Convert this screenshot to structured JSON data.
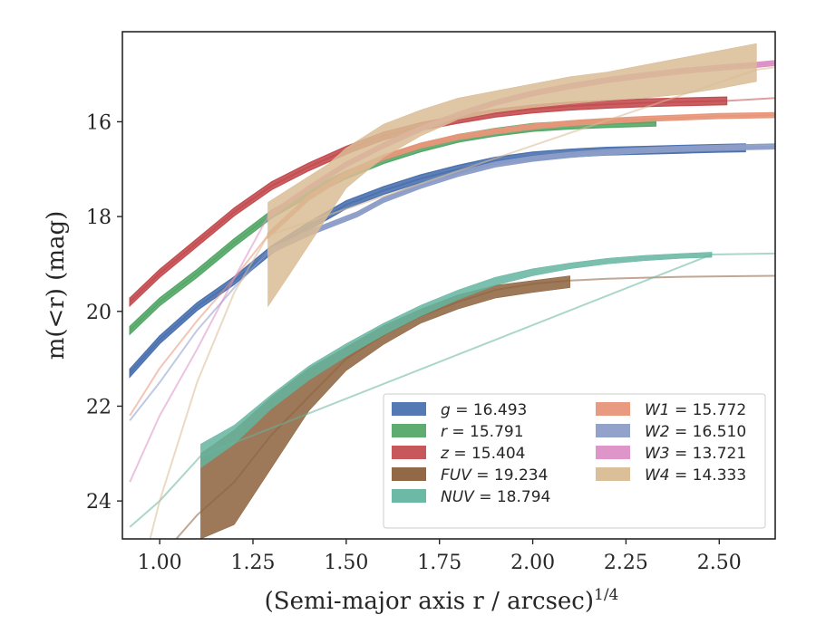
{
  "chart_data": {
    "type": "line",
    "xlabel": "(Semi-major axis r / arcsec)",
    "xlabel_superscript": "1/4",
    "ylabel": "m(<r) (mag)",
    "xlim": [
      0.9,
      2.65
    ],
    "ylim": [
      24.8,
      14.1
    ],
    "y_inverted": true,
    "grid": false,
    "legend_placement": "lower-right",
    "x_ticks": [
      "1.00",
      "1.25",
      "1.50",
      "1.75",
      "2.00",
      "2.25",
      "2.50"
    ],
    "x_tick_values": [
      1.0,
      1.25,
      1.5,
      1.75,
      2.0,
      2.25,
      2.5
    ],
    "y_ticks": [
      "16",
      "18",
      "20",
      "22",
      "24"
    ],
    "y_tick_values": [
      16,
      18,
      20,
      22,
      24
    ],
    "series": [
      {
        "band": "g",
        "value": "16.493",
        "color": "#4c72b0",
        "data_x": [
          0.92,
          1.0,
          1.1,
          1.2,
          1.3,
          1.4,
          1.5,
          1.6,
          1.7,
          1.8,
          1.9,
          2.0,
          2.1,
          2.2,
          2.3,
          2.4,
          2.5,
          2.57
        ],
        "data_y": [
          21.3,
          20.6,
          19.9,
          19.35,
          18.7,
          18.2,
          17.75,
          17.45,
          17.2,
          17.0,
          16.83,
          16.72,
          16.66,
          16.62,
          16.6,
          16.58,
          16.56,
          16.55
        ],
        "data_halfwidth": 0.08,
        "model_x": [
          2.57,
          2.65
        ],
        "model_y": [
          16.55,
          16.52
        ]
      },
      {
        "band": "r",
        "value": "15.791",
        "color": "#55a868",
        "data_x": [
          0.92,
          1.0,
          1.1,
          1.2,
          1.3,
          1.4,
          1.5,
          1.6,
          1.7,
          1.8,
          1.9,
          2.0,
          2.1,
          2.2,
          2.33
        ],
        "data_y": [
          20.4,
          19.8,
          19.2,
          18.55,
          17.95,
          17.5,
          17.12,
          16.8,
          16.55,
          16.35,
          16.22,
          16.12,
          16.07,
          16.04,
          16.01
        ],
        "data_halfwidth": 0.08,
        "model_x": [],
        "model_y": []
      },
      {
        "band": "z",
        "value": "15.404",
        "color": "#c44e52",
        "data_x": [
          0.92,
          1.0,
          1.1,
          1.2,
          1.3,
          1.4,
          1.5,
          1.6,
          1.7,
          1.8,
          1.9,
          2.0,
          2.1,
          2.2,
          2.3,
          2.4,
          2.52
        ],
        "data_y": [
          19.8,
          19.2,
          18.55,
          17.9,
          17.35,
          16.95,
          16.6,
          16.3,
          16.1,
          15.95,
          15.82,
          15.73,
          15.67,
          15.63,
          15.6,
          15.58,
          15.56
        ],
        "data_halfwidth": 0.08,
        "model_x": [
          2.52,
          2.65
        ],
        "model_y": [
          15.56,
          15.5
        ]
      },
      {
        "band": "FUV",
        "value": "19.234",
        "color": "#8c613c",
        "data_x": [
          1.11,
          1.2,
          1.3,
          1.4,
          1.5,
          1.6,
          1.7,
          1.8,
          1.9,
          2.0,
          2.1
        ],
        "data_lo": [
          24.8,
          24.5,
          23.3,
          22.1,
          21.25,
          20.7,
          20.25,
          19.95,
          19.72,
          19.6,
          19.5
        ],
        "data_hi": [
          23.0,
          22.5,
          21.8,
          21.2,
          20.75,
          20.3,
          19.95,
          19.65,
          19.45,
          19.35,
          19.25
        ],
        "model_x": [
          0.92,
          1.0,
          1.1,
          1.2,
          1.3,
          1.4,
          1.5,
          1.6,
          1.7,
          1.8,
          1.9,
          2.0,
          2.1,
          2.2,
          2.3,
          2.4,
          2.5,
          2.65
        ],
        "model_y": [
          25.8,
          25.2,
          24.3,
          23.6,
          22.6,
          21.8,
          21.0,
          20.5,
          20.1,
          19.8,
          19.55,
          19.42,
          19.35,
          19.31,
          19.29,
          19.27,
          19.26,
          19.25
        ]
      },
      {
        "band": "NUV",
        "value": "18.794",
        "color": "#64b5a0",
        "data_x": [
          1.11,
          1.2,
          1.3,
          1.4,
          1.5,
          1.6,
          1.7,
          1.8,
          1.9,
          2.0,
          2.1,
          2.2,
          2.3,
          2.4,
          2.48
        ],
        "data_lo": [
          23.3,
          22.8,
          22.05,
          21.45,
          20.95,
          20.5,
          20.1,
          19.75,
          19.45,
          19.25,
          19.1,
          19.0,
          18.93,
          18.88,
          18.86
        ],
        "data_hi": [
          22.8,
          22.4,
          21.75,
          21.15,
          20.68,
          20.25,
          19.87,
          19.55,
          19.28,
          19.1,
          18.98,
          18.88,
          18.82,
          18.78,
          18.75
        ],
        "model_x": [
          0.92,
          1.0,
          1.11,
          2.48,
          2.65
        ],
        "model_y": [
          24.55,
          24.0,
          23.05,
          18.8,
          18.78
        ]
      },
      {
        "band": "W1",
        "value": "15.772",
        "color": "#e8967a",
        "data_x": [
          1.29,
          1.4,
          1.5,
          1.6,
          1.7,
          1.8,
          1.9,
          2.0,
          2.1,
          2.2,
          2.3,
          2.4,
          2.5,
          2.65
        ],
        "data_y": [
          18.4,
          17.6,
          17.1,
          16.75,
          16.5,
          16.32,
          16.2,
          16.1,
          16.03,
          15.98,
          15.94,
          15.91,
          15.88,
          15.86
        ],
        "data_halfwidth": 0.05,
        "model_x": [
          0.92,
          1.0,
          1.1,
          1.2,
          1.29
        ],
        "model_y": [
          22.2,
          21.2,
          20.2,
          19.3,
          18.4
        ]
      },
      {
        "band": "W2",
        "value": "16.510",
        "color": "#8c9dc8",
        "data_x": [
          1.29,
          1.4,
          1.53,
          1.6,
          1.7,
          1.8,
          1.9,
          2.0,
          2.1,
          2.2,
          2.3,
          2.4,
          2.5,
          2.65
        ],
        "data_y": [
          18.75,
          18.35,
          17.95,
          17.65,
          17.35,
          17.1,
          16.9,
          16.78,
          16.7,
          16.64,
          16.6,
          16.57,
          16.55,
          16.52
        ],
        "data_halfwidth": 0.05,
        "model_x": [
          0.92,
          1.0,
          1.1,
          1.2,
          1.29
        ],
        "model_y": [
          22.3,
          21.5,
          20.4,
          19.5,
          18.75
        ]
      },
      {
        "band": "W3",
        "value": "13.721",
        "color": "#dc8fc4",
        "data_x": [
          1.29,
          1.4,
          1.5,
          1.6,
          1.7,
          1.8,
          1.9,
          2.0,
          2.1,
          2.2,
          2.3,
          2.4,
          2.5,
          2.6,
          2.65
        ],
        "data_y": [
          18.0,
          17.4,
          16.9,
          16.5,
          16.15,
          15.85,
          15.6,
          15.4,
          15.25,
          15.12,
          15.02,
          14.93,
          14.86,
          14.8,
          14.76
        ],
        "data_halfwidth": 0.05,
        "model_x": [
          0.92,
          1.0,
          1.1,
          1.2,
          1.29
        ],
        "model_y": [
          23.6,
          22.2,
          20.8,
          19.3,
          18.0
        ]
      },
      {
        "band": "W4",
        "value": "14.333",
        "color": "#d9bc94",
        "data_x": [
          1.29,
          1.35,
          1.45,
          1.5,
          1.6,
          1.7,
          1.8,
          1.9,
          2.0,
          2.1,
          2.2,
          2.3,
          2.4,
          2.5,
          2.6
        ],
        "data_lo": [
          19.9,
          19.2,
          18.0,
          17.4,
          16.75,
          16.3,
          15.95,
          15.8,
          15.7,
          15.62,
          15.55,
          15.5,
          15.42,
          15.3,
          15.15
        ],
        "data_hi": [
          17.7,
          17.4,
          16.9,
          16.55,
          16.05,
          15.75,
          15.5,
          15.35,
          15.2,
          15.05,
          14.95,
          14.8,
          14.65,
          14.5,
          14.35
        ],
        "model_x": [
          0.92,
          1.0,
          1.1,
          1.2,
          1.29,
          2.6,
          2.65
        ],
        "model_y": [
          26.5,
          24.0,
          21.5,
          19.6,
          18.4,
          14.9,
          14.85
        ]
      }
    ]
  }
}
